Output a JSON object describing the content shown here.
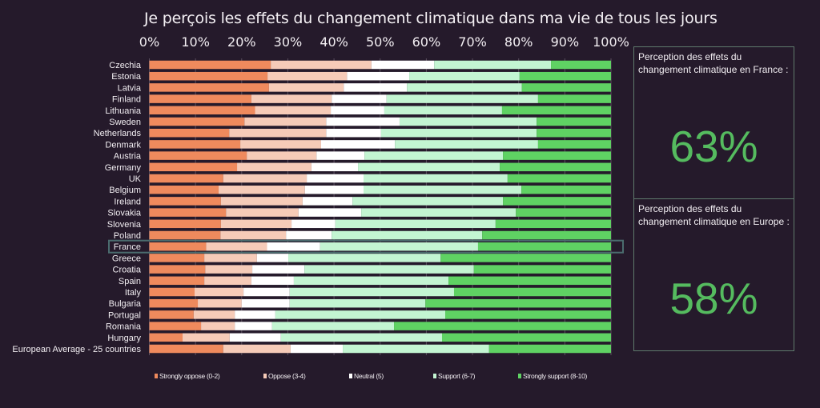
{
  "chart_data": {
    "type": "bar",
    "orientation": "horizontal",
    "stacked": true,
    "title": "Je perçois les effets du changement climatique dans ma vie de tous les jours",
    "xlabel": "",
    "ylabel": "",
    "xlim": [
      0,
      100
    ],
    "x_ticks": [
      "0%",
      "10%",
      "20%",
      "30%",
      "40%",
      "50%",
      "60%",
      "70%",
      "80%",
      "90%",
      "100%"
    ],
    "grid": true,
    "legend_position": "bottom",
    "highlighted_category": "France",
    "categories": [
      "Czechia",
      "Estonia",
      "Latvia",
      "Finland",
      "Lithuania",
      "Sweden",
      "Netherlands",
      "Denmark",
      "Austria",
      "Germany",
      "UK",
      "Belgium",
      "Ireland",
      "Slovakia",
      "Slovenia",
      "Poland",
      "France",
      "Greece",
      "Croatia",
      "Spain",
      "Italy",
      "Bulgaria",
      "Portugal",
      "Romania",
      "Hungary",
      "European Average - 25 countries"
    ],
    "series": [
      {
        "name": "Strongly oppose (0-2)",
        "color": "#ef8a5d",
        "values": [
          26.3,
          25.6,
          25.9,
          22.1,
          22.9,
          20.6,
          17.3,
          19.7,
          21.1,
          19.0,
          16.0,
          15.0,
          15.5,
          16.6,
          15.5,
          15.4,
          12.3,
          11.9,
          12.1,
          11.9,
          9.8,
          10.5,
          9.6,
          11.2,
          7.2,
          16.0
        ]
      },
      {
        "name": "Oppose (3-4)",
        "color": "#f6cbb8",
        "values": [
          21.8,
          17.2,
          16.2,
          17.4,
          16.4,
          17.7,
          21.0,
          17.5,
          15.1,
          16.1,
          18.1,
          18.7,
          17.7,
          15.7,
          15.3,
          14.2,
          13.2,
          11.4,
          10.2,
          10.2,
          10.6,
          9.5,
          8.9,
          7.3,
          10.2,
          14.6
        ]
      },
      {
        "name": "Neutral (5)",
        "color": "#ffffff",
        "values": [
          13.6,
          13.5,
          13.7,
          11.9,
          11.6,
          15.9,
          11.9,
          16.0,
          10.4,
          10.1,
          12.3,
          12.7,
          10.8,
          13.6,
          9.5,
          9.9,
          11.5,
          6.8,
          11.3,
          9.2,
          10.0,
          10.4,
          8.8,
          8.1,
          11.1,
          11.3
        ]
      },
      {
        "name": "Support (6-7)",
        "color": "#c3f5d2",
        "values": [
          25.3,
          23.9,
          24.9,
          32.8,
          25.5,
          29.7,
          33.7,
          31.0,
          30.0,
          30.7,
          31.2,
          34.2,
          32.6,
          33.5,
          34.7,
          32.6,
          34.2,
          33.0,
          36.7,
          33.5,
          35.6,
          29.4,
          36.8,
          26.4,
          34.9,
          31.7
        ]
      },
      {
        "name": "Strongly support (8-10)",
        "color": "#5fd263",
        "values": [
          13.0,
          19.8,
          19.3,
          15.8,
          23.6,
          16.1,
          16.1,
          15.8,
          23.4,
          24.1,
          22.4,
          19.4,
          23.4,
          20.6,
          25.0,
          27.9,
          28.8,
          36.9,
          29.7,
          35.2,
          34.0,
          40.2,
          35.9,
          47.0,
          36.6,
          26.4
        ]
      }
    ]
  },
  "side_panel": {
    "france": {
      "label": "Perception des effets du changement climatique en France :",
      "value": "63%"
    },
    "europe": {
      "label": "Perception des effets du changement climatique en Europe :",
      "value": "58%"
    }
  }
}
